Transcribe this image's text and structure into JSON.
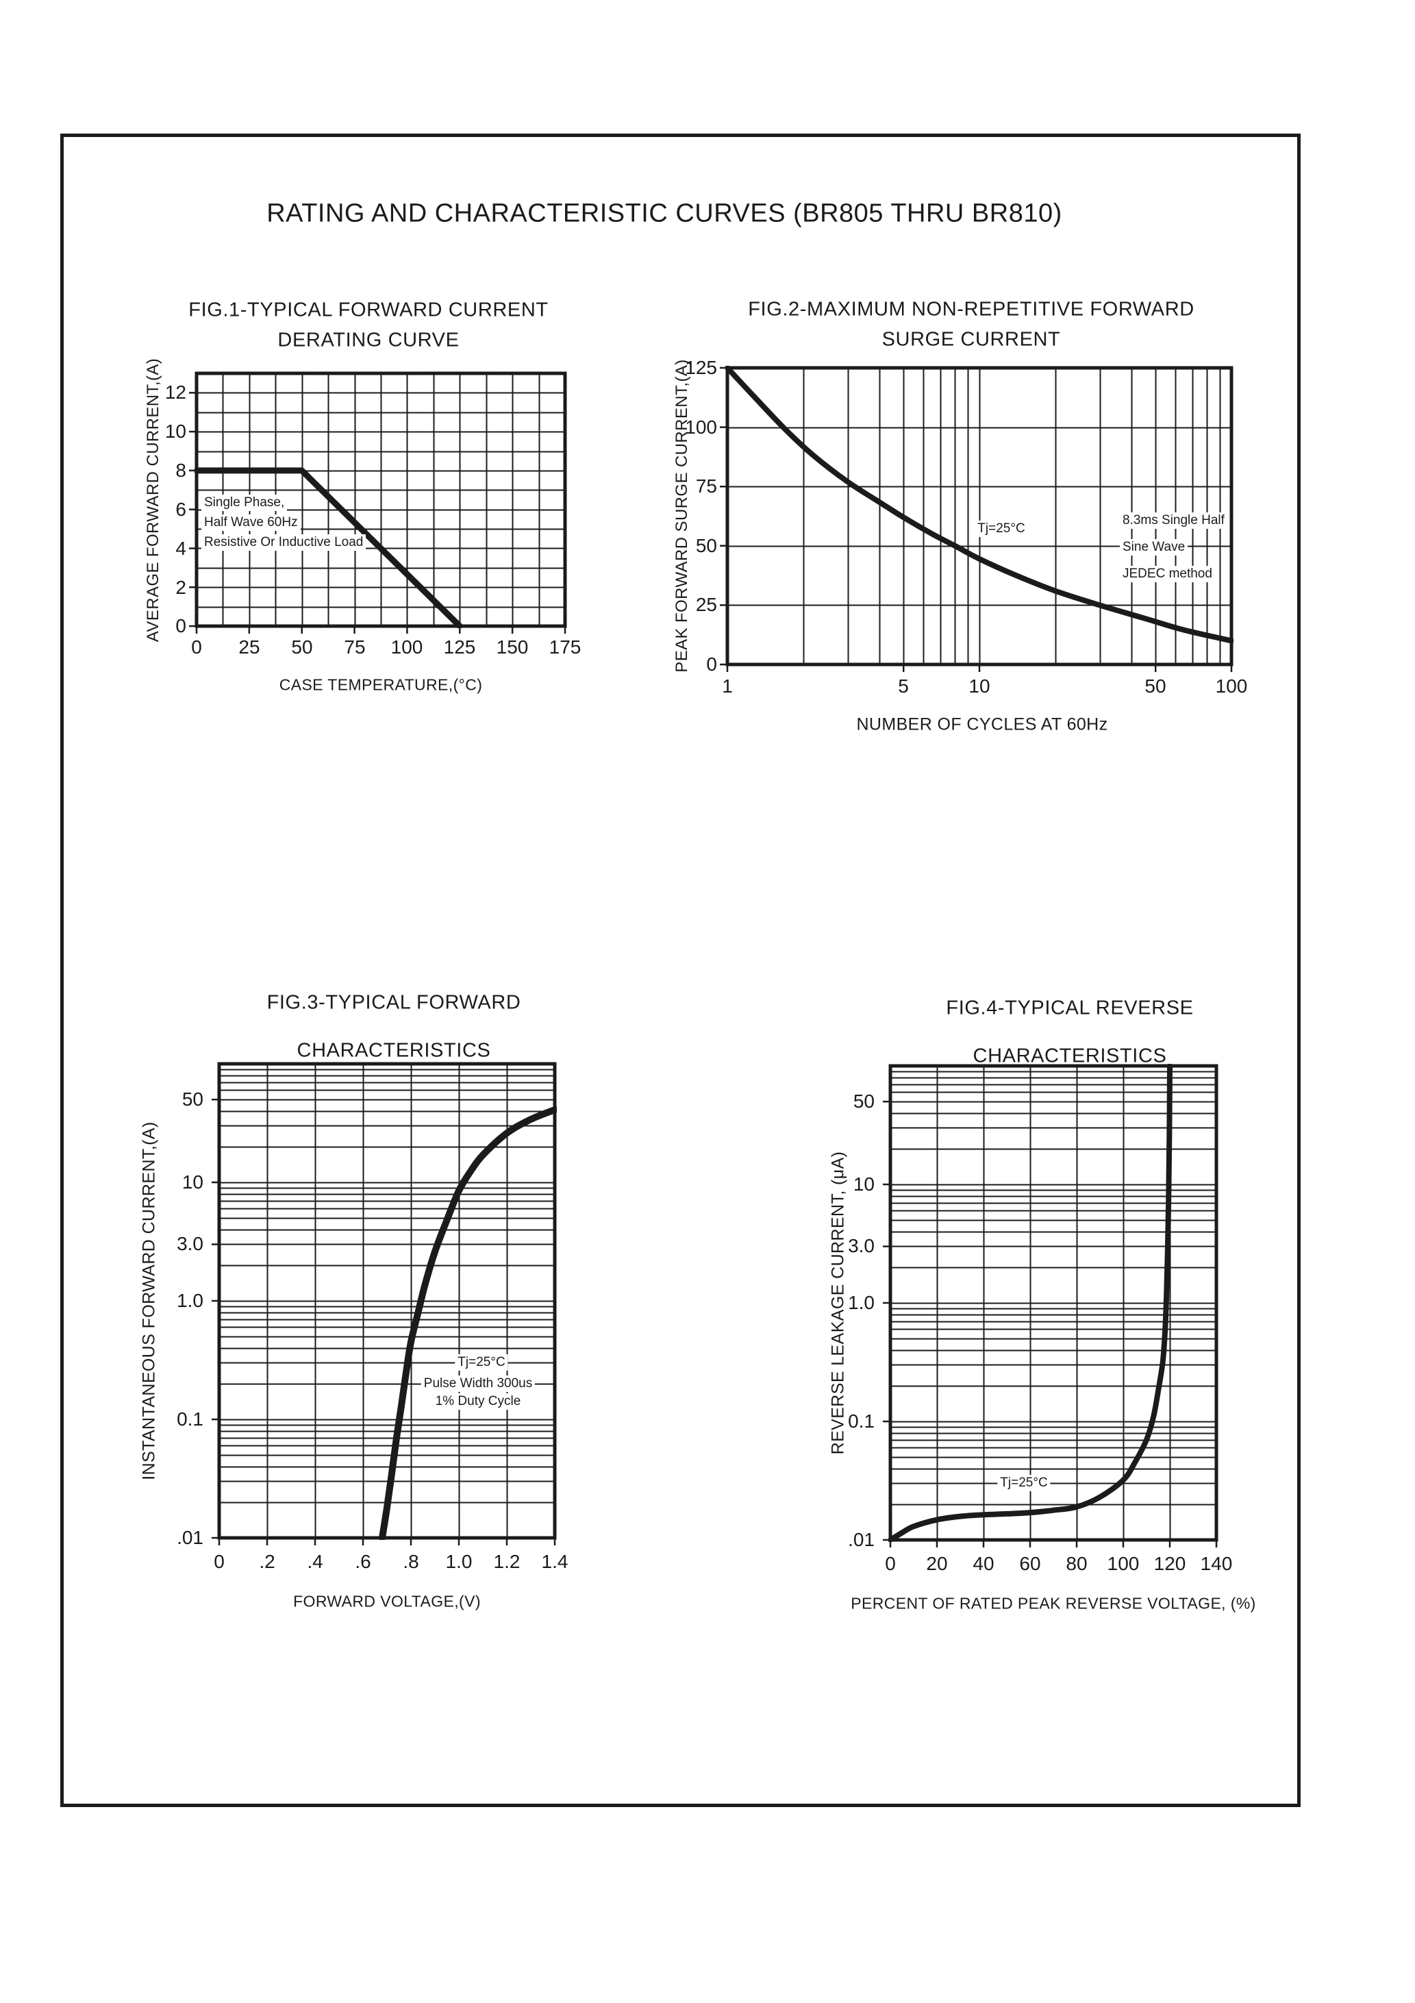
{
  "page": {
    "title": "RATING AND CHARACTERISTIC CURVES (BR805 THRU BR810)"
  },
  "chart_data": [
    {
      "id": "fig1",
      "type": "line",
      "title_lines": [
        "FIG.1-TYPICAL FORWARD CURRENT",
        "DERATING CURVE"
      ],
      "xlabel": "CASE TEMPERATURE,(°C)",
      "ylabel": "AVERAGE FORWARD CURRENT,(A)",
      "x_scale": "linear",
      "y_scale": "linear",
      "xlim": [
        0,
        175
      ],
      "ylim": [
        0,
        13
      ],
      "x_ticks": [
        "0",
        "25",
        "50",
        "75",
        "100",
        "125",
        "150",
        "175"
      ],
      "y_ticks": [
        "12",
        "10",
        "8",
        "6",
        "4",
        "2",
        "0"
      ],
      "annotations": [
        "Single Phase,",
        "Half Wave 60Hz",
        "Resistive Or Inductive Load"
      ],
      "grid": "on",
      "series": [
        {
          "name": "forward-current-derating",
          "points": [
            [
              0,
              8
            ],
            [
              50,
              8
            ],
            [
              125,
              0
            ]
          ]
        }
      ]
    },
    {
      "id": "fig2",
      "type": "line",
      "title_lines": [
        "FIG.2-MAXIMUM NON-REPETITIVE FORWARD",
        "SURGE CURRENT"
      ],
      "xlabel": "NUMBER OF CYCLES AT 60Hz",
      "ylabel": "PEAK FORWARD SURGE CURRENT,(A)",
      "x_scale": "log",
      "y_scale": "linear",
      "xlim": [
        1,
        100
      ],
      "ylim": [
        0,
        125
      ],
      "x_ticks": [
        "1",
        "5",
        "10",
        "50",
        "100"
      ],
      "y_ticks": [
        "125",
        "100",
        "75",
        "50",
        "25",
        "0"
      ],
      "annotations": {
        "condition": "Tj=25°C",
        "method_lines": [
          "8.3ms Single Half",
          "Sine Wave",
          "JEDEC method"
        ]
      },
      "grid": "on",
      "series": [
        {
          "name": "max-surge-current",
          "points": [
            [
              1,
              125
            ],
            [
              1.3,
              112
            ],
            [
              1.7,
              99
            ],
            [
              2.2,
              88
            ],
            [
              3,
              77
            ],
            [
              4,
              68.5
            ],
            [
              5,
              62
            ],
            [
              6.5,
              55
            ],
            [
              8,
              50
            ],
            [
              10,
              44.5
            ],
            [
              14,
              37.5
            ],
            [
              20,
              31
            ],
            [
              30,
              25
            ],
            [
              45,
              19.5
            ],
            [
              65,
              14.5
            ],
            [
              100,
              10
            ]
          ]
        }
      ]
    },
    {
      "id": "fig3",
      "type": "line",
      "title_lines": [
        "FIG.3-TYPICAL FORWARD",
        "CHARACTERISTICS"
      ],
      "xlabel": "FORWARD VOLTAGE,(V)",
      "ylabel": "INSTANTANEOUS FORWARD CURRENT,(A)",
      "x_scale": "linear",
      "y_scale": "log",
      "xlim": [
        0,
        1.4
      ],
      "ylim": [
        0.01,
        100
      ],
      "x_ticks": [
        "0",
        ".2",
        ".4",
        ".6",
        ".8",
        "1.0",
        "1.2",
        "1.4"
      ],
      "y_ticks": [
        "50",
        "10",
        "3.0",
        "1.0",
        "0.1",
        ".01"
      ],
      "annotations": {
        "condition": "Tj=25°C",
        "pulse": "Pulse Width 300us",
        "duty": "1% Duty Cycle"
      },
      "grid": "on",
      "series": [
        {
          "name": "forward-characteristic",
          "points": [
            [
              0.68,
              0.01
            ],
            [
              0.7,
              0.018
            ],
            [
              0.72,
              0.035
            ],
            [
              0.74,
              0.07
            ],
            [
              0.76,
              0.13
            ],
            [
              0.78,
              0.25
            ],
            [
              0.8,
              0.45
            ],
            [
              0.83,
              0.8
            ],
            [
              0.86,
              1.4
            ],
            [
              0.9,
              2.6
            ],
            [
              0.95,
              4.8
            ],
            [
              1.0,
              8.5
            ],
            [
              1.05,
              12.5
            ],
            [
              1.1,
              17
            ],
            [
              1.2,
              26
            ],
            [
              1.3,
              34
            ],
            [
              1.4,
              41
            ]
          ]
        }
      ]
    },
    {
      "id": "fig4",
      "type": "line",
      "title_lines": [
        "FIG.4-TYPICAL REVERSE",
        "CHARACTERISTICS"
      ],
      "xlabel": "PERCENT OF RATED PEAK REVERSE VOLTAGE, (%)",
      "ylabel": "REVERSE LEAKAGE CURRENT, (μA)",
      "x_scale": "linear",
      "y_scale": "log",
      "xlim": [
        0,
        140
      ],
      "ylim": [
        0.01,
        100
      ],
      "x_ticks": [
        "0",
        "20",
        "40",
        "60",
        "80",
        "100",
        "120",
        "140"
      ],
      "y_ticks": [
        "50",
        "10",
        "3.0",
        "1.0",
        "0.1",
        ".01"
      ],
      "annotations": {
        "condition": "Tj=25°C"
      },
      "grid": "on",
      "series": [
        {
          "name": "reverse-leakage",
          "points": [
            [
              0,
              0.01
            ],
            [
              5,
              0.0115
            ],
            [
              10,
              0.013
            ],
            [
              20,
              0.0148
            ],
            [
              30,
              0.0158
            ],
            [
              40,
              0.0163
            ],
            [
              50,
              0.0166
            ],
            [
              60,
              0.017
            ],
            [
              70,
              0.0178
            ],
            [
              80,
              0.019
            ],
            [
              90,
              0.023
            ],
            [
              100,
              0.032
            ],
            [
              105,
              0.045
            ],
            [
              110,
              0.07
            ],
            [
              113,
              0.11
            ],
            [
              115,
              0.18
            ],
            [
              117,
              0.32
            ],
            [
              118,
              0.6
            ],
            [
              118.6,
              1.2
            ],
            [
              119.1,
              3
            ],
            [
              119.5,
              8
            ],
            [
              119.8,
              25
            ],
            [
              120,
              100
            ]
          ]
        }
      ]
    }
  ]
}
